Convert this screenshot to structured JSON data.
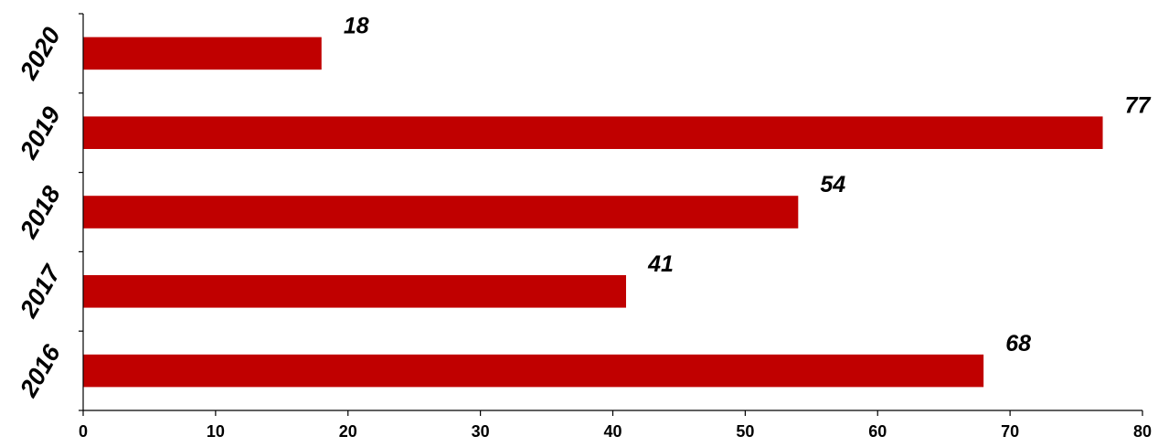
{
  "chart_data": {
    "type": "bar",
    "orientation": "horizontal",
    "categories": [
      "2020",
      "2019",
      "2018",
      "2017",
      "2016"
    ],
    "values": [
      18,
      77,
      54,
      41,
      68
    ],
    "data_labels": [
      "18",
      "77",
      "54",
      "41",
      "68"
    ],
    "xlim": [
      0,
      80
    ],
    "xticks": [
      0,
      10,
      20,
      30,
      40,
      50,
      60,
      70,
      80
    ],
    "xtick_labels": [
      "0",
      "10",
      "20",
      "30",
      "40",
      "50",
      "60",
      "70",
      "80"
    ],
    "grid": false,
    "legend": "none",
    "bar_color": "#c00000",
    "title": "",
    "xlabel": "",
    "ylabel": ""
  }
}
